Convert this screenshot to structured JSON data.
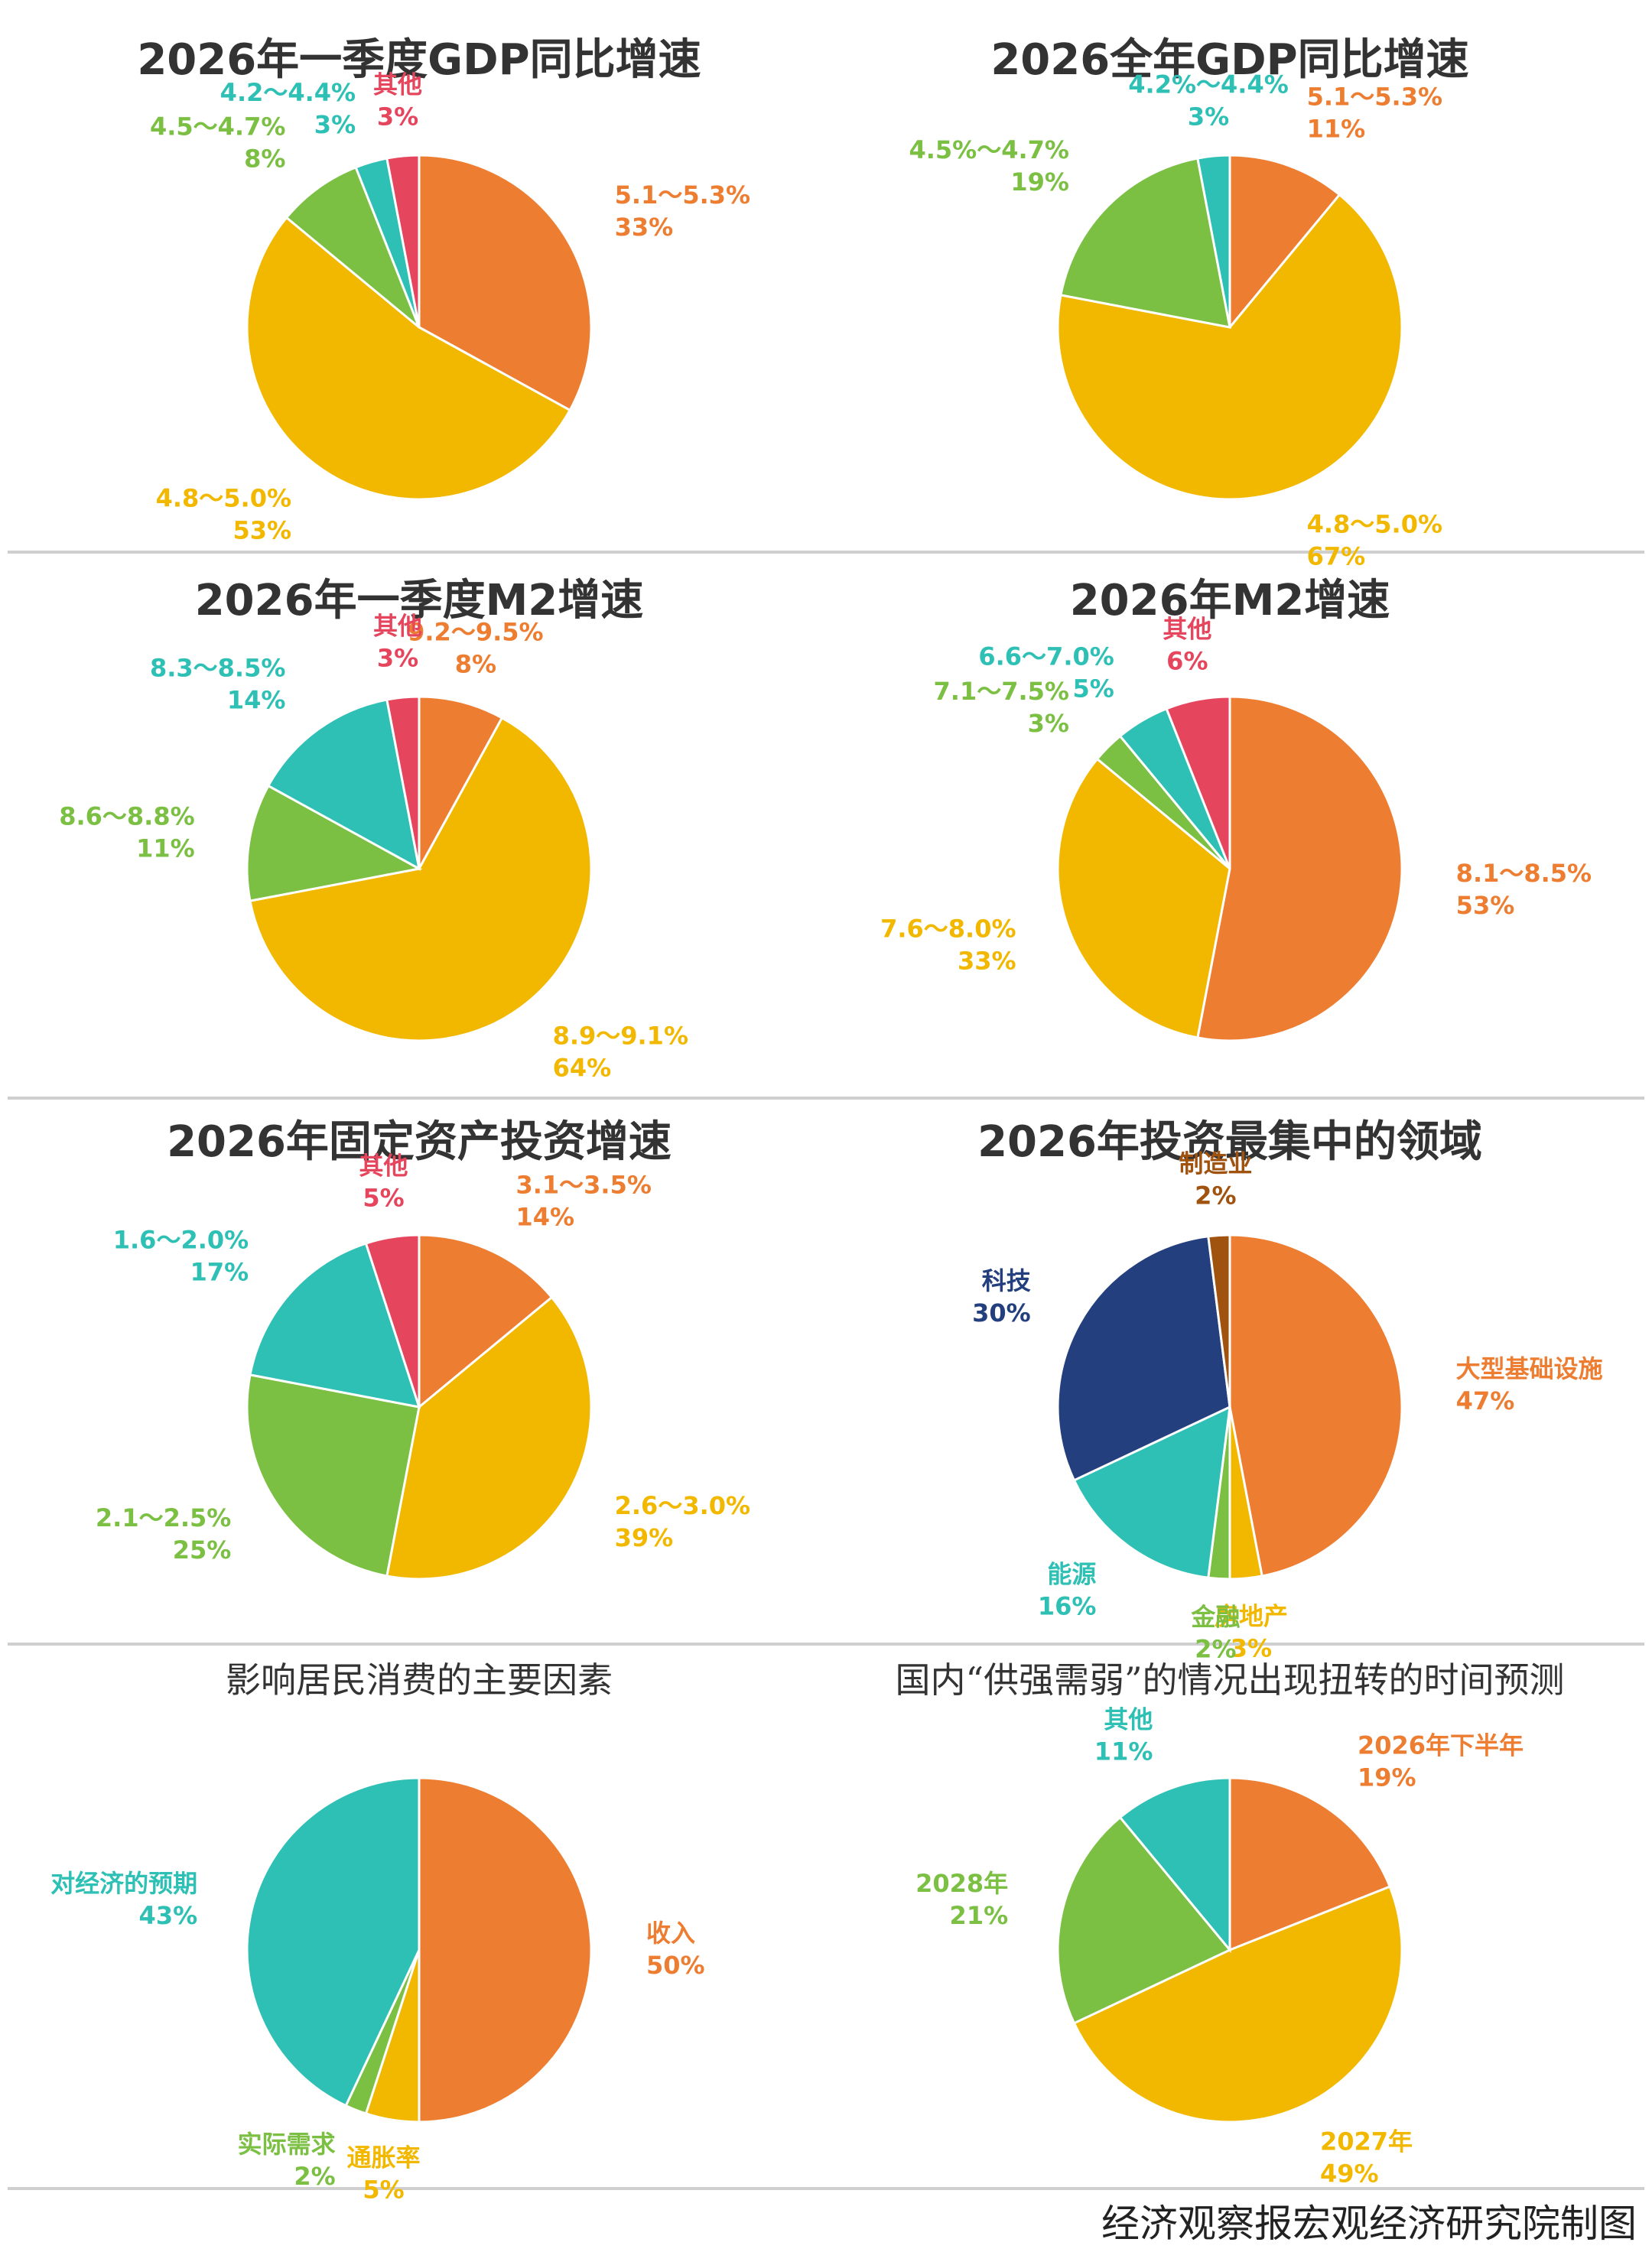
{
  "chart_data": [
    {
      "type": "pie",
      "title": "2026年一季度GDP同比增速",
      "categories": [
        "5.1～5.3%",
        "4.8～5.0%",
        "4.5～4.7%",
        "4.2～4.4%",
        "其他"
      ],
      "values": [
        33,
        53,
        8,
        3,
        3
      ],
      "value_labels": [
        "33%",
        "53%",
        "8%",
        "3%",
        "3%"
      ],
      "colors": [
        "#ED7D31",
        "#F2B800",
        "#7BBF43",
        "#2EC0B4",
        "#E5465E"
      ]
    },
    {
      "type": "pie",
      "title": "2026全年GDP同比增速",
      "categories": [
        "5.1～5.3%",
        "4.8～5.0%",
        "4.5%～4.7%",
        "4.2%～4.4%"
      ],
      "values": [
        11,
        67,
        19,
        3
      ],
      "value_labels": [
        "11%",
        "67%",
        "19%",
        "3%"
      ],
      "colors": [
        "#ED7D31",
        "#F2B800",
        "#7BBF43",
        "#2EC0B4"
      ]
    },
    {
      "type": "pie",
      "title": "2026年一季度M2增速",
      "categories": [
        "9.2～9.5%",
        "8.9～9.1%",
        "8.6～8.8%",
        "8.3～8.5%",
        "其他"
      ],
      "values": [
        8,
        64,
        11,
        14,
        3
      ],
      "value_labels": [
        "8%",
        "64%",
        "11%",
        "14%",
        "3%"
      ],
      "colors": [
        "#ED7D31",
        "#F2B800",
        "#7BBF43",
        "#2EC0B4",
        "#E5465E"
      ]
    },
    {
      "type": "pie",
      "title": "2026年M2增速",
      "categories": [
        "8.1～8.5%",
        "7.6～8.0%",
        "7.1～7.5%",
        "6.6～7.0%",
        "其他"
      ],
      "values": [
        53,
        33,
        3,
        5,
        6
      ],
      "value_labels": [
        "53%",
        "33%",
        "3%",
        "5%",
        "6%"
      ],
      "colors": [
        "#ED7D31",
        "#F2B800",
        "#7BBF43",
        "#2EC0B4",
        "#E5465E"
      ]
    },
    {
      "type": "pie",
      "title": "2026年固定资产投资增速",
      "categories": [
        "3.1～3.5%",
        "2.6～3.0%",
        "2.1～2.5%",
        "1.6～2.0%",
        "其他"
      ],
      "values": [
        14,
        39,
        25,
        17,
        5
      ],
      "value_labels": [
        "14%",
        "39%",
        "25%",
        "17%",
        "5%"
      ],
      "colors": [
        "#ED7D31",
        "#F2B800",
        "#7BBF43",
        "#2EC0B4",
        "#E5465E"
      ]
    },
    {
      "type": "pie",
      "title": "2026年投资最集中的领域",
      "categories": [
        "大型基础设施",
        "房地产",
        "金融",
        "能源",
        "科技",
        "制造业"
      ],
      "values": [
        47,
        3,
        2,
        16,
        30,
        2
      ],
      "value_labels": [
        "47%",
        "3%",
        "2%",
        "16%",
        "30%",
        "2%"
      ],
      "colors": [
        "#ED7D31",
        "#F2B800",
        "#7BBF43",
        "#2EC0B4",
        "#243F7E",
        "#A0520F"
      ]
    },
    {
      "type": "pie",
      "title": "影响居民消费的主要因素",
      "categories": [
        "收入",
        "通胀率",
        "实际需求",
        "对经济的预期"
      ],
      "values": [
        50,
        5,
        2,
        43
      ],
      "value_labels": [
        "50%",
        "5%",
        "2%",
        "43%"
      ],
      "colors": [
        "#ED7D31",
        "#F2B800",
        "#7BBF43",
        "#2EC0B4"
      ]
    },
    {
      "type": "pie",
      "title": "国内“供强需弱”的情况出现扭转的时间预测",
      "categories": [
        "2026年下半年",
        "2027年",
        "2028年",
        "其他"
      ],
      "values": [
        19,
        49,
        21,
        11
      ],
      "value_labels": [
        "19%",
        "49%",
        "21%",
        "11%"
      ],
      "colors": [
        "#ED7D31",
        "#F2B800",
        "#7BBF43",
        "#2EC0B4"
      ]
    }
  ],
  "source": "经济观察报宏观经济研究院制图"
}
